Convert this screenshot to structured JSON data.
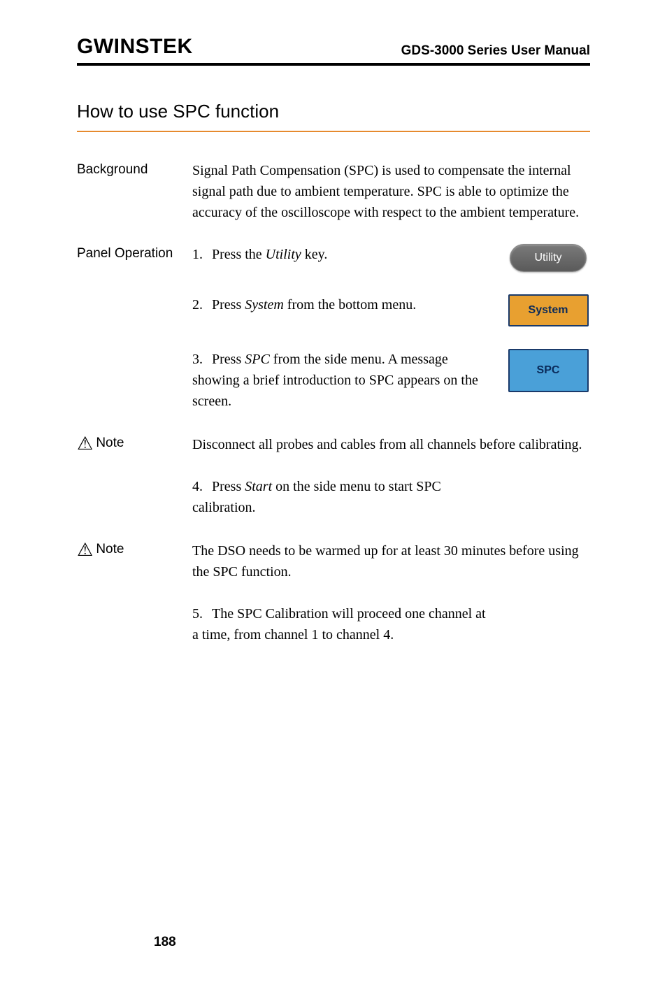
{
  "header": {
    "brand": "GWINSTEK",
    "manual_title": "GDS-3000 Series User Manual"
  },
  "section_title": "How to use SPC function",
  "rows": {
    "background": {
      "label": "Background",
      "text": "Signal Path Compensation (SPC) is used to compensate the internal signal path due to ambient temperature. SPC is able to optimize the accuracy of the oscilloscope with respect to the ambient temperature."
    },
    "panel_op": {
      "label": "Panel Operation"
    }
  },
  "steps": {
    "s1": {
      "num": "1.",
      "pre": "Press the ",
      "em": "Utility",
      "post": " key."
    },
    "s2": {
      "num": "2.",
      "pre": "Press ",
      "em": "System",
      "post": " from the bottom menu."
    },
    "s3": {
      "num": "3.",
      "pre": "Press ",
      "em": "SPC",
      "post": " from the side menu. A message showing a brief introduction to SPC appears on the screen."
    },
    "s4": {
      "num": "4.",
      "pre": "Press ",
      "em": "Start",
      "post": " on the side menu to start SPC calibration."
    },
    "s5": {
      "num": "5.",
      "text": "The SPC Calibration will proceed one channel at a time, from channel 1 to channel 4."
    }
  },
  "notes": {
    "n1": {
      "label": "Note",
      "text": "Disconnect all probes and cables from all channels before calibrating."
    },
    "n2": {
      "label": "Note",
      "text": "The DSO needs to be warmed up for at least 30 minutes before using the SPC function."
    }
  },
  "buttons": {
    "utility": "Utility",
    "system": "System",
    "spc": "SPC"
  },
  "colors": {
    "orange_rule": "#e68a2e",
    "system_btn_bg": "#e8a030",
    "system_btn_border": "#1a3a6a",
    "spc_btn_bg": "#4aa0d8",
    "utility_btn_text": "#ffffff"
  },
  "page_number": "188"
}
